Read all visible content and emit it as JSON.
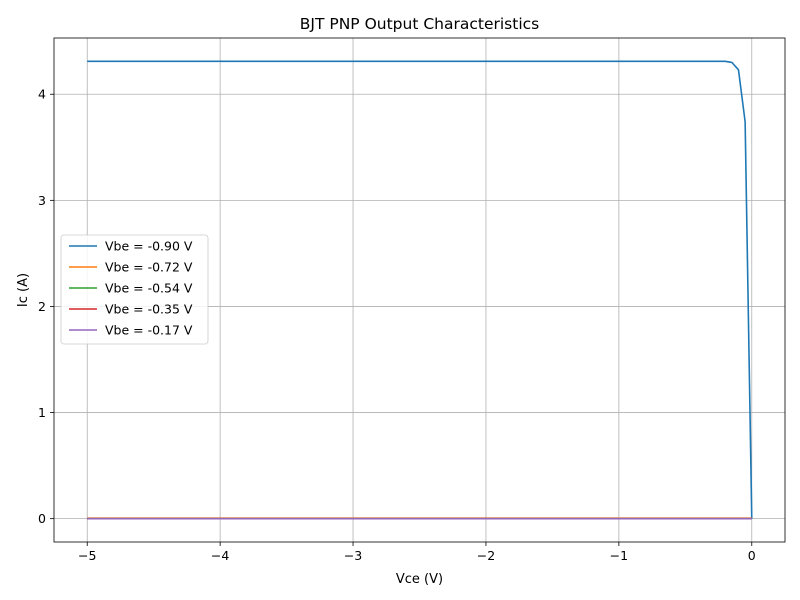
{
  "chart_data": {
    "type": "line",
    "title": "BJT PNP Output Characteristics",
    "xlabel": "Vce (V)",
    "ylabel": "Ic (A)",
    "xlim": [
      -5.25,
      0.25
    ],
    "ylim": [
      -0.22,
      4.53
    ],
    "xticks": [
      -5,
      -4,
      -3,
      -2,
      -1,
      0
    ],
    "xtick_labels": [
      "−5",
      "−4",
      "−3",
      "−2",
      "−1",
      "0"
    ],
    "yticks": [
      0,
      1,
      2,
      3,
      4
    ],
    "ytick_labels": [
      "0",
      "1",
      "2",
      "3",
      "4"
    ],
    "grid": true,
    "legend_position": "center-left",
    "series": [
      {
        "name": "Vbe = -0.90 V",
        "color": "#1f77b4",
        "x": [
          -5,
          -4,
          -3,
          -2,
          -1,
          -0.5,
          -0.25,
          -0.2,
          -0.15,
          -0.1,
          -0.05,
          0
        ],
        "y": [
          4.31,
          4.31,
          4.31,
          4.31,
          4.31,
          4.31,
          4.31,
          4.31,
          4.3,
          4.23,
          3.74,
          0
        ]
      },
      {
        "name": "Vbe = -0.72 V",
        "color": "#ff7f0e",
        "x": [
          -5,
          0
        ],
        "y": [
          0.005,
          0.005
        ]
      },
      {
        "name": "Vbe = -0.54 V",
        "color": "#2ca02c",
        "x": [
          -5,
          0
        ],
        "y": [
          0,
          0
        ]
      },
      {
        "name": "Vbe = -0.35 V",
        "color": "#d62728",
        "x": [
          -5,
          0
        ],
        "y": [
          0,
          0
        ]
      },
      {
        "name": "Vbe = -0.17 V",
        "color": "#9467bd",
        "x": [
          -5,
          0
        ],
        "y": [
          0,
          0
        ]
      }
    ]
  }
}
